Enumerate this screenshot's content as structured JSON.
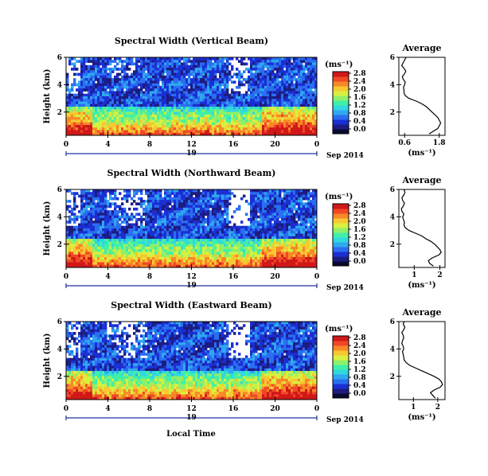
{
  "figure": {
    "date_label": "Sep 2014",
    "day_label": "19",
    "xaxis_title": "Local Time",
    "unit_label": "(ms⁻¹)",
    "average_title": "Average",
    "avg_xlabel": "(ms⁻¹)"
  },
  "colorbar": {
    "ticks": [
      "2.8",
      "2.4",
      "2.0",
      "1.6",
      "1.2",
      "0.8",
      "0.4",
      "0.0"
    ],
    "colors": [
      "#0a0a30",
      "#1c1c80",
      "#1b2fd4",
      "#2a6ef0",
      "#2fa8f0",
      "#30d8e0",
      "#3ff0a8",
      "#8ff06a",
      "#d8f040",
      "#f8c830",
      "#f88828",
      "#f04828",
      "#d01818"
    ]
  },
  "chart_data": [
    {
      "type": "heatmap",
      "title": "Spectral Width (Vertical Beam)",
      "ylabel": "Height (km)",
      "xlabel": "Local Time",
      "x_ticks": [
        "0",
        "4",
        "8",
        "12",
        "16",
        "20",
        "0"
      ],
      "y_ticks": [
        "6",
        "4",
        "2"
      ],
      "xlim": [
        0,
        24
      ],
      "ylim": [
        0.3,
        6.0
      ],
      "colorbar_range": [
        0.0,
        2.8
      ],
      "average_profile": {
        "title": "Average",
        "x_ticks": [
          "0.6",
          "1.8"
        ],
        "xlim": [
          0.4,
          2.0
        ],
        "y_ticks": [
          "6",
          "4",
          "2"
        ],
        "ylim": [
          0.3,
          6.0
        ],
        "height": [
          0.4,
          0.6,
          0.8,
          1.0,
          1.2,
          1.4,
          1.6,
          1.8,
          2.0,
          2.2,
          2.4,
          2.6,
          2.8,
          3.0,
          3.2,
          3.4,
          3.6,
          3.8,
          4.0,
          4.2,
          4.4,
          4.6,
          4.8,
          5.0,
          5.2,
          5.4,
          5.6,
          5.8,
          6.0
        ],
        "width": [
          1.45,
          1.6,
          1.75,
          1.8,
          1.85,
          1.8,
          1.75,
          1.65,
          1.55,
          1.45,
          1.35,
          1.2,
          1.0,
          0.75,
          0.62,
          0.58,
          0.58,
          0.56,
          0.6,
          0.62,
          0.55,
          0.52,
          0.6,
          0.64,
          0.58,
          0.5,
          0.55,
          0.6,
          0.65
        ]
      }
    },
    {
      "type": "heatmap",
      "title": "Spectral Width (Northward Beam)",
      "ylabel": "Height (km)",
      "xlabel": "Local Time",
      "x_ticks": [
        "0",
        "4",
        "8",
        "12",
        "16",
        "20",
        "0"
      ],
      "y_ticks": [
        "6",
        "4",
        "2"
      ],
      "xlim": [
        0,
        24
      ],
      "ylim": [
        0.3,
        6.0
      ],
      "colorbar_range": [
        0.0,
        2.8
      ],
      "average_profile": {
        "title": "Average",
        "x_ticks": [
          "1",
          "2"
        ],
        "xlim": [
          0.4,
          2.2
        ],
        "y_ticks": [
          "6",
          "4",
          "2"
        ],
        "ylim": [
          0.3,
          6.0
        ],
        "height": [
          0.4,
          0.6,
          0.8,
          1.0,
          1.2,
          1.4,
          1.6,
          1.8,
          2.0,
          2.2,
          2.4,
          2.6,
          2.8,
          3.0,
          3.2,
          3.4,
          3.6,
          3.8,
          4.0,
          4.2,
          4.4,
          4.6,
          4.8,
          5.0,
          5.2,
          5.4,
          5.6,
          5.8,
          6.0
        ],
        "width": [
          1.75,
          1.6,
          1.55,
          1.7,
          1.95,
          2.05,
          2.0,
          1.9,
          1.8,
          1.65,
          1.45,
          1.3,
          1.05,
          0.8,
          0.65,
          0.6,
          0.62,
          0.58,
          0.55,
          0.6,
          0.52,
          0.5,
          0.58,
          0.62,
          0.55,
          0.52,
          0.6,
          0.64,
          0.6
        ]
      }
    },
    {
      "type": "heatmap",
      "title": "Spectral Width (Eastward Beam)",
      "ylabel": "Height (km)",
      "xlabel": "Local Time",
      "x_ticks": [
        "0",
        "4",
        "8",
        "12",
        "16",
        "20",
        "0"
      ],
      "y_ticks": [
        "6",
        "4",
        "2"
      ],
      "xlim": [
        0,
        24
      ],
      "ylim": [
        0.3,
        6.0
      ],
      "colorbar_range": [
        0.0,
        2.8
      ],
      "average_profile": {
        "title": "Average",
        "x_ticks": [
          "1",
          "2"
        ],
        "xlim": [
          0.4,
          2.3
        ],
        "y_ticks": [
          "6",
          "4",
          "2"
        ],
        "ylim": [
          0.3,
          6.0
        ],
        "height": [
          0.4,
          0.6,
          0.8,
          1.0,
          1.2,
          1.4,
          1.6,
          1.8,
          2.0,
          2.2,
          2.4,
          2.6,
          2.8,
          3.0,
          3.2,
          3.4,
          3.6,
          3.8,
          4.0,
          4.2,
          4.4,
          4.6,
          4.8,
          5.0,
          5.2,
          5.4,
          5.6,
          5.8,
          6.0
        ],
        "width": [
          1.9,
          1.8,
          1.7,
          1.85,
          2.1,
          2.2,
          2.15,
          2.05,
          1.85,
          1.6,
          1.35,
          1.1,
          0.85,
          0.7,
          0.62,
          0.6,
          0.58,
          0.55,
          0.6,
          0.58,
          0.52,
          0.55,
          0.6,
          0.58,
          0.52,
          0.6,
          0.65,
          0.58,
          0.62
        ]
      }
    }
  ]
}
